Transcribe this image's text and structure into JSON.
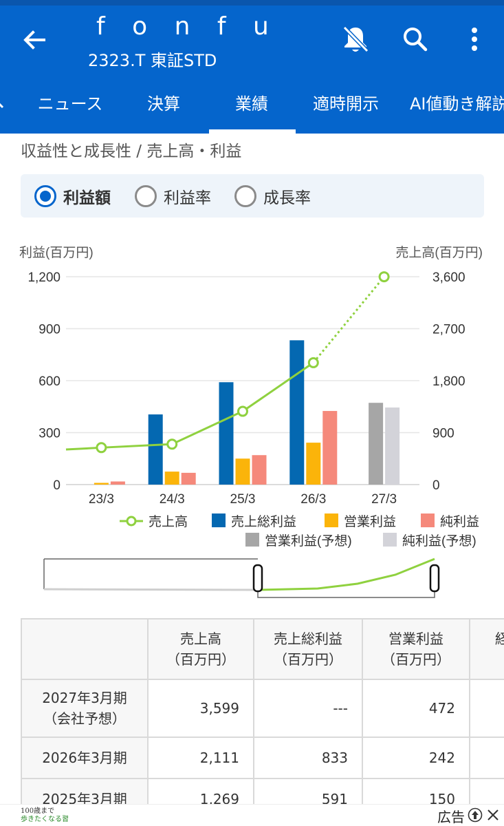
{
  "header": {
    "title": "f o n f u",
    "subtitle": "2323.T 東証STD",
    "colors": {
      "appbar": "#0565cc"
    },
    "icons": [
      "back-arrow-icon",
      "bell-off-icon",
      "search-icon",
      "more-vert-icon"
    ]
  },
  "tabs": [
    {
      "label": "ニュース"
    },
    {
      "label": "決算"
    },
    {
      "label": "業績",
      "selected": true
    },
    {
      "label": "適時開示"
    },
    {
      "label": "AI値動き解説"
    }
  ],
  "section_title": "収益性と成長性 / 売上高・利益",
  "radio_options": [
    {
      "label": "利益額",
      "checked": true
    },
    {
      "label": "利益率",
      "checked": false
    },
    {
      "label": "成長率",
      "checked": false
    }
  ],
  "chart_data": {
    "type": "bar",
    "left_axis_label": "利益(百万円)",
    "right_axis_label": "売上高(百万円)",
    "categories": [
      "23/3",
      "24/3",
      "25/3",
      "26/3",
      "27/3"
    ],
    "left_ticks": [
      "1,200",
      "900",
      "600",
      "300",
      "0"
    ],
    "right_ticks": [
      "3,600",
      "2,700",
      "1,800",
      "900",
      "0"
    ],
    "ylim_left": [
      0,
      1200
    ],
    "ylim_right": [
      0,
      3600
    ],
    "grid": true,
    "legend_placement": "bottom",
    "series": [
      {
        "name": "売上総利益",
        "kind": "bar",
        "color": "#0468b1",
        "values": [
          null,
          405,
          591,
          833,
          null
        ]
      },
      {
        "name": "営業利益",
        "kind": "bar",
        "color": "#fbb40a",
        "values": [
          10,
          75,
          150,
          242,
          null
        ]
      },
      {
        "name": "純利益",
        "kind": "bar",
        "color": "#f5897b",
        "values": [
          18,
          68,
          170,
          425,
          null
        ]
      },
      {
        "name": "営業利益(予想)",
        "kind": "bar",
        "color": "#a6a6a6",
        "values": [
          null,
          null,
          null,
          null,
          472
        ]
      },
      {
        "name": "純利益(予想)",
        "kind": "bar",
        "color": "#d3d3d9",
        "values": [
          null,
          null,
          null,
          null,
          445
        ]
      },
      {
        "name": "売上高",
        "kind": "line",
        "axis": "right",
        "color": "#8fd13f",
        "values": [
          640,
          700,
          1269,
          2111,
          3599
        ]
      }
    ],
    "legend_order": [
      "売上高",
      "売上総利益",
      "営業利益",
      "純利益",
      "営業利益(予想)",
      "純利益(予想)"
    ]
  },
  "table": {
    "headers": [
      {
        "line1": "",
        "line2": ""
      },
      {
        "line1": "売上高",
        "line2": "（百万円）"
      },
      {
        "line1": "売上総利益",
        "line2": "（百万円）"
      },
      {
        "line1": "営業利益",
        "line2": "（百万円）"
      },
      {
        "line1": "経",
        "line2": "（百"
      }
    ],
    "rows": [
      {
        "period1": "2027年3月期",
        "period2": "（会社予想）",
        "sales": "3,599",
        "gross": "---",
        "operating": "472"
      },
      {
        "period1": "2026年3月期",
        "period2": "",
        "sales": "2,111",
        "gross": "833",
        "operating": "242"
      },
      {
        "period1": "2025年3月期",
        "period2": "",
        "sales": "1,269",
        "gross": "591",
        "operating": "150"
      }
    ]
  },
  "ad": {
    "thumb_text_1": "100歳まで",
    "thumb_text_2": "歩きたくなる習",
    "label": "広告"
  }
}
